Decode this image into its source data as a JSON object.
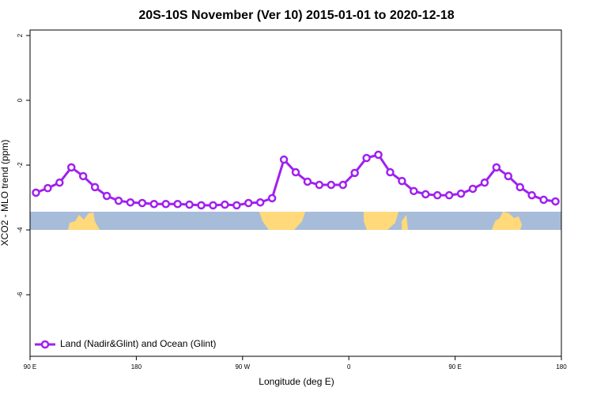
{
  "chart_data": {
    "type": "line",
    "title": "20S-10S November (Ver 10)   2015-01-01 to 2020-12-18",
    "x_label": "Longitude (deg E)",
    "y_label": "XCO2 - MLO trend (ppm)",
    "x": [
      95,
      105,
      115,
      125,
      135,
      145,
      155,
      165,
      175,
      185,
      195,
      205,
      215,
      225,
      235,
      245,
      255,
      265,
      275,
      285,
      295,
      305,
      315,
      325,
      335,
      345,
      355,
      365,
      375,
      385,
      395,
      405,
      415,
      425,
      435,
      445,
      455,
      465,
      475,
      485,
      495,
      505,
      515,
      525,
      535
    ],
    "series": [
      {
        "name": "Land (Nadir&Glint) and Ocean (Glint)",
        "color": "#a020f0",
        "values": [
          -2.85,
          -2.71,
          -2.54,
          -2.07,
          -2.34,
          -2.68,
          -2.95,
          -3.1,
          -3.15,
          -3.17,
          -3.2,
          -3.2,
          -3.2,
          -3.22,
          -3.24,
          -3.24,
          -3.22,
          -3.24,
          -3.17,
          -3.15,
          -3.02,
          -1.83,
          -2.22,
          -2.51,
          -2.61,
          -2.61,
          -2.61,
          -2.24,
          -1.78,
          -1.68,
          -2.22,
          -2.49,
          -2.8,
          -2.9,
          -2.93,
          -2.93,
          -2.88,
          -2.73,
          -2.54,
          -2.07,
          -2.34,
          -2.68,
          -2.93,
          -3.07,
          -3.12
        ]
      }
    ],
    "xlim": [
      90,
      540
    ],
    "xticks": [
      {
        "value": 90,
        "label": "90 E"
      },
      180,
      {
        "value": 270,
        "label": "90 W"
      },
      {
        "value": 360,
        "label": "0"
      },
      {
        "value": 450,
        "label": "90 E"
      },
      {
        "value": 540,
        "label": "180"
      }
    ],
    "ylim": [
      -7.9,
      2.17
    ],
    "yticks": [
      -6,
      -4,
      -2,
      0,
      2
    ],
    "legend": "bottom-left"
  }
}
